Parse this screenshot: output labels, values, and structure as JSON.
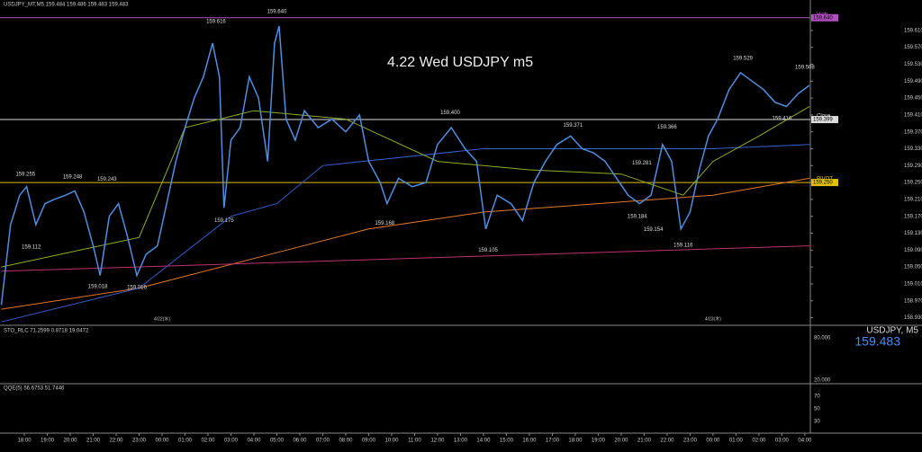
{
  "header": {
    "info": "USDJPY_MT,M5  159.484 159.486 159.483 159.483"
  },
  "chart_data": {
    "type": "line",
    "title": "4.22 Wed USDJPY m5",
    "xlim": [
      -1.06,
      34.24
    ],
    "xticks": [
      {
        "value": 0,
        "label": "18:00"
      },
      {
        "value": 1,
        "label": "19:00"
      },
      {
        "value": 2,
        "label": "20:00"
      },
      {
        "value": 3,
        "label": "21:00"
      },
      {
        "value": 4,
        "label": "22:00"
      },
      {
        "value": 5,
        "label": "23:00"
      },
      {
        "value": 6,
        "label": "00:00"
      },
      {
        "value": 7,
        "label": "01:00"
      },
      {
        "value": 8,
        "label": "02:00"
      },
      {
        "value": 9,
        "label": "03:00"
      },
      {
        "value": 10,
        "label": "04:00"
      },
      {
        "value": 11,
        "label": "05:00"
      },
      {
        "value": 12,
        "label": "06:00"
      },
      {
        "value": 13,
        "label": "07:00"
      },
      {
        "value": 14,
        "label": "08:00"
      },
      {
        "value": 15,
        "label": "09:00"
      },
      {
        "value": 16,
        "label": "10:00"
      },
      {
        "value": 17,
        "label": "11:00"
      },
      {
        "value": 18,
        "label": "12:00"
      },
      {
        "value": 19,
        "label": "13:00"
      },
      {
        "value": 20,
        "label": "14:00"
      },
      {
        "value": 21,
        "label": "15:00"
      },
      {
        "value": 22,
        "label": "16:00"
      },
      {
        "value": 23,
        "label": "17:00"
      },
      {
        "value": 24,
        "label": "18:00"
      },
      {
        "value": 25,
        "label": "19:00"
      },
      {
        "value": 26,
        "label": "20:00"
      },
      {
        "value": 27,
        "label": "21:00"
      },
      {
        "value": 28,
        "label": "22:00"
      },
      {
        "value": 29,
        "label": "23:00"
      },
      {
        "value": 30,
        "label": "00:00"
      },
      {
        "value": 31,
        "label": "01:00"
      },
      {
        "value": 32,
        "label": "02:00"
      },
      {
        "value": 33,
        "label": "03:00"
      },
      {
        "value": 34,
        "label": "04:00"
      }
    ],
    "ylim": [
      158.912,
      159.682
    ],
    "yticks": [
      {
        "value": 158.93,
        "label": "158.930"
      },
      {
        "value": 158.97,
        "label": "158.970"
      },
      {
        "value": 159.01,
        "label": "159.010"
      },
      {
        "value": 159.05,
        "label": "159.050"
      },
      {
        "value": 159.09,
        "label": "159.090"
      },
      {
        "value": 159.13,
        "label": "159.130"
      },
      {
        "value": 159.17,
        "label": "159.170"
      },
      {
        "value": 159.21,
        "label": "159.210"
      },
      {
        "value": 159.25,
        "label": "159.250"
      },
      {
        "value": 159.29,
        "label": "159.290"
      },
      {
        "value": 159.33,
        "label": "159.330"
      },
      {
        "value": 159.37,
        "label": "159.370"
      },
      {
        "value": 159.41,
        "label": "159.410"
      },
      {
        "value": 159.45,
        "label": "159.450"
      },
      {
        "value": 159.49,
        "label": "159.490"
      },
      {
        "value": 159.53,
        "label": "159.530"
      },
      {
        "value": 159.57,
        "label": "159.570"
      },
      {
        "value": 159.61,
        "label": "159.610"
      }
    ],
    "series": [
      {
        "color": "#e07a2a",
        "x": [
          -1,
          5,
          10,
          15,
          20,
          25,
          30,
          34.2
        ],
        "values": [
          158.95,
          159.0,
          159.07,
          159.14,
          159.18,
          159.2,
          159.22,
          159.26
        ]
      },
      {
        "color": "#c03070",
        "x": [
          -1,
          34.2
        ],
        "values": [
          159.04,
          159.1
        ]
      },
      {
        "color": "#3a5fd0",
        "x": [
          -1,
          5,
          9,
          11,
          13,
          20,
          25,
          30,
          34.2
        ],
        "values": [
          158.92,
          159.0,
          159.17,
          159.2,
          159.29,
          159.33,
          159.33,
          159.33,
          159.34
        ]
      },
      {
        "color": "#8fb020",
        "x": [
          -1,
          5,
          7,
          10,
          14,
          18,
          22,
          26,
          28.7,
          30,
          32,
          34.2
        ],
        "values": [
          159.05,
          159.12,
          159.38,
          159.42,
          159.4,
          159.3,
          159.28,
          159.27,
          159.22,
          159.3,
          159.36,
          159.43
        ]
      },
      {
        "color": "#4f8fdf",
        "x": [
          -1,
          -0.6,
          -0.2,
          0.1,
          0.5,
          0.9,
          1.3,
          1.8,
          2.2,
          2.6,
          3.0,
          3.3,
          3.7,
          4.1,
          4.5,
          4.9,
          5.3,
          5.8,
          6.2,
          6.6,
          7.0,
          7.4,
          7.8,
          8.2,
          8.5,
          8.7,
          9.0,
          9.4,
          9.8,
          10.2,
          10.6,
          10.9,
          11.1,
          11.4,
          11.8,
          12.2,
          12.8,
          13.4,
          14.0,
          14.6,
          15.0,
          15.5,
          15.8,
          16.3,
          16.9,
          17.5,
          18.0,
          18.6,
          19.2,
          19.7,
          20.1,
          20.6,
          21.2,
          21.7,
          22.2,
          22.7,
          23.2,
          23.8,
          24.3,
          24.8,
          25.3,
          25.8,
          26.3,
          26.8,
          27.3,
          27.8,
          28.2,
          28.6,
          29.0,
          29.4,
          29.8,
          30.2,
          30.7,
          31.2,
          31.7,
          32.2,
          32.7,
          33.2,
          33.7,
          34.2
        ],
        "values": [
          158.96,
          159.15,
          159.22,
          159.24,
          159.15,
          159.2,
          159.21,
          159.22,
          159.23,
          159.18,
          159.1,
          159.03,
          159.17,
          159.2,
          159.12,
          159.03,
          159.08,
          159.1,
          159.2,
          159.3,
          159.38,
          159.45,
          159.5,
          159.58,
          159.5,
          159.19,
          159.35,
          159.38,
          159.5,
          159.45,
          159.3,
          159.58,
          159.62,
          159.4,
          159.35,
          159.42,
          159.38,
          159.4,
          159.37,
          159.41,
          159.3,
          159.25,
          159.2,
          159.26,
          159.24,
          159.25,
          159.34,
          159.38,
          159.33,
          159.3,
          159.14,
          159.22,
          159.2,
          159.16,
          159.25,
          159.3,
          159.34,
          159.36,
          159.33,
          159.32,
          159.3,
          159.26,
          159.22,
          159.2,
          159.22,
          159.34,
          159.3,
          159.14,
          159.18,
          159.28,
          159.36,
          159.4,
          159.47,
          159.51,
          159.49,
          159.47,
          159.44,
          159.43,
          159.46,
          159.48
        ]
      }
    ],
    "high_labels": [
      {
        "x": 0.05,
        "value": 159.255
      },
      {
        "x": 2.1,
        "value": 159.248
      },
      {
        "x": 3.6,
        "value": 159.243
      },
      {
        "x": 8.35,
        "value": 159.616
      },
      {
        "x": 11.0,
        "value": 159.64,
        "label": "159.640"
      },
      {
        "x": 18.55,
        "value": 159.4,
        "label": "159.400"
      },
      {
        "x": 23.9,
        "value": 159.371
      },
      {
        "x": 26.9,
        "value": 159.281
      },
      {
        "x": 28.0,
        "value": 159.366
      },
      {
        "x": 31.3,
        "value": 159.529
      },
      {
        "x": 34.0,
        "value": 159.508
      }
    ],
    "low_labels": [
      {
        "x": 0.3,
        "value": 159.112
      },
      {
        "x": 3.2,
        "value": 159.018
      },
      {
        "x": 4.9,
        "value": 159.016
      },
      {
        "x": 8.7,
        "value": 159.175
      },
      {
        "x": 15.7,
        "value": 159.168
      },
      {
        "x": 20.2,
        "value": 159.105
      },
      {
        "x": 26.7,
        "value": 159.184
      },
      {
        "x": 27.4,
        "value": 159.154
      },
      {
        "x": 28.7,
        "value": 159.116
      },
      {
        "x": 33.0,
        "value": 159.416
      }
    ],
    "levels": [
      {
        "name": "High",
        "value": 159.64,
        "label": "159.640",
        "color": "#b050c0"
      },
      {
        "name": "Close",
        "value": 159.399,
        "label": "159.399",
        "color": "#dddddd"
      },
      {
        "name": "PIVOT",
        "value": 159.25,
        "label": "159.250",
        "color": "#e0c000"
      }
    ],
    "date_labels": [
      {
        "value": 6,
        "label": "4/22(水)"
      },
      {
        "value": 30,
        "label": "4/23(木)"
      }
    ],
    "symbol": "USDJPY, M5",
    "price": 159.483
  },
  "indicators": [
    {
      "label": "STO_RLC 71.2599 0.8718 19.0472",
      "ticks": [
        "80.000",
        "20.000"
      ]
    },
    {
      "label": "QQE(5) 56.6753 51.7446",
      "ticks": [
        "70",
        "50",
        "30"
      ]
    }
  ]
}
